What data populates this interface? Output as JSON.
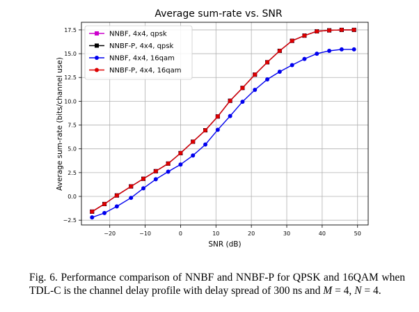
{
  "chart_data": {
    "type": "line",
    "title": "Average sum-rate vs. SNR",
    "xlabel": "SNR (dB)",
    "ylabel": "Average sum-rate (bits/channel use)",
    "xlim": [
      -28,
      53
    ],
    "ylim": [
      -3.0,
      18.3
    ],
    "xticks": [
      -20,
      -10,
      0,
      10,
      20,
      30,
      40,
      50
    ],
    "yticks": [
      -2.5,
      0.0,
      2.5,
      5.0,
      7.5,
      10.0,
      12.5,
      15.0,
      17.5
    ],
    "xtick_labels": [
      "−20",
      "−10",
      "0",
      "10",
      "20",
      "30",
      "40",
      "50"
    ],
    "ytick_labels": [
      "−2.5",
      "0.0",
      "2.5",
      "5.0",
      "7.5",
      "10.0",
      "12.5",
      "15.0",
      "17.5"
    ],
    "grid": true,
    "legend_position": "top-left",
    "x": [
      -25,
      -21.5,
      -18,
      -14,
      -10.5,
      -7,
      -3.5,
      0,
      3.5,
      7,
      10.5,
      14,
      17.5,
      21,
      24.5,
      28,
      31.5,
      35,
      38.5,
      42,
      45.5,
      49
    ],
    "series": [
      {
        "name": "NNBF, 4x4, qpsk",
        "color": "#cc00cc",
        "marker": "square",
        "values": [
          -1.6,
          -0.8,
          0.1,
          1.05,
          1.85,
          2.65,
          3.45,
          4.55,
          5.75,
          6.95,
          8.4,
          10.05,
          11.4,
          12.8,
          14.1,
          15.3,
          16.35,
          16.9,
          17.35,
          17.45,
          17.5,
          17.5
        ]
      },
      {
        "name": "NNBF-P, 4x4, qpsk",
        "color": "#000000",
        "marker": "square",
        "values": [
          -1.6,
          -0.8,
          0.1,
          1.05,
          1.85,
          2.65,
          3.45,
          4.55,
          5.75,
          6.95,
          8.4,
          10.05,
          11.4,
          12.8,
          14.1,
          15.3,
          16.35,
          16.9,
          17.35,
          17.45,
          17.5,
          17.5
        ]
      },
      {
        "name": "NNBF, 4x4, 16qam",
        "color": "#0000ee",
        "marker": "circle",
        "values": [
          -2.2,
          -1.75,
          -1.05,
          -0.15,
          0.85,
          1.8,
          2.6,
          3.35,
          4.3,
          5.45,
          7.0,
          8.45,
          9.95,
          11.2,
          12.3,
          13.1,
          13.8,
          14.45,
          15.0,
          15.3,
          15.45,
          15.45
        ]
      },
      {
        "name": "NNBF-P, 4x4, 16qam",
        "color": "#dd0000",
        "marker": "circle",
        "values": [
          -1.6,
          -0.8,
          0.1,
          1.05,
          1.85,
          2.65,
          3.45,
          4.55,
          5.75,
          6.95,
          8.4,
          10.05,
          11.4,
          12.8,
          14.1,
          15.3,
          16.35,
          16.9,
          17.35,
          17.45,
          17.5,
          17.5
        ]
      }
    ]
  },
  "caption": {
    "prefix": "Fig. 6.",
    "line1": "Performance comparison of NNBF and NNBF-P for QPSK and",
    "line2": "16QAM when TDL-C is the channel delay profile with delay spread of 300",
    "line3_a": "ns and ",
    "line3_m": "M",
    "line3_b": " = 4, ",
    "line3_n": "N",
    "line3_c": " = 4."
  }
}
